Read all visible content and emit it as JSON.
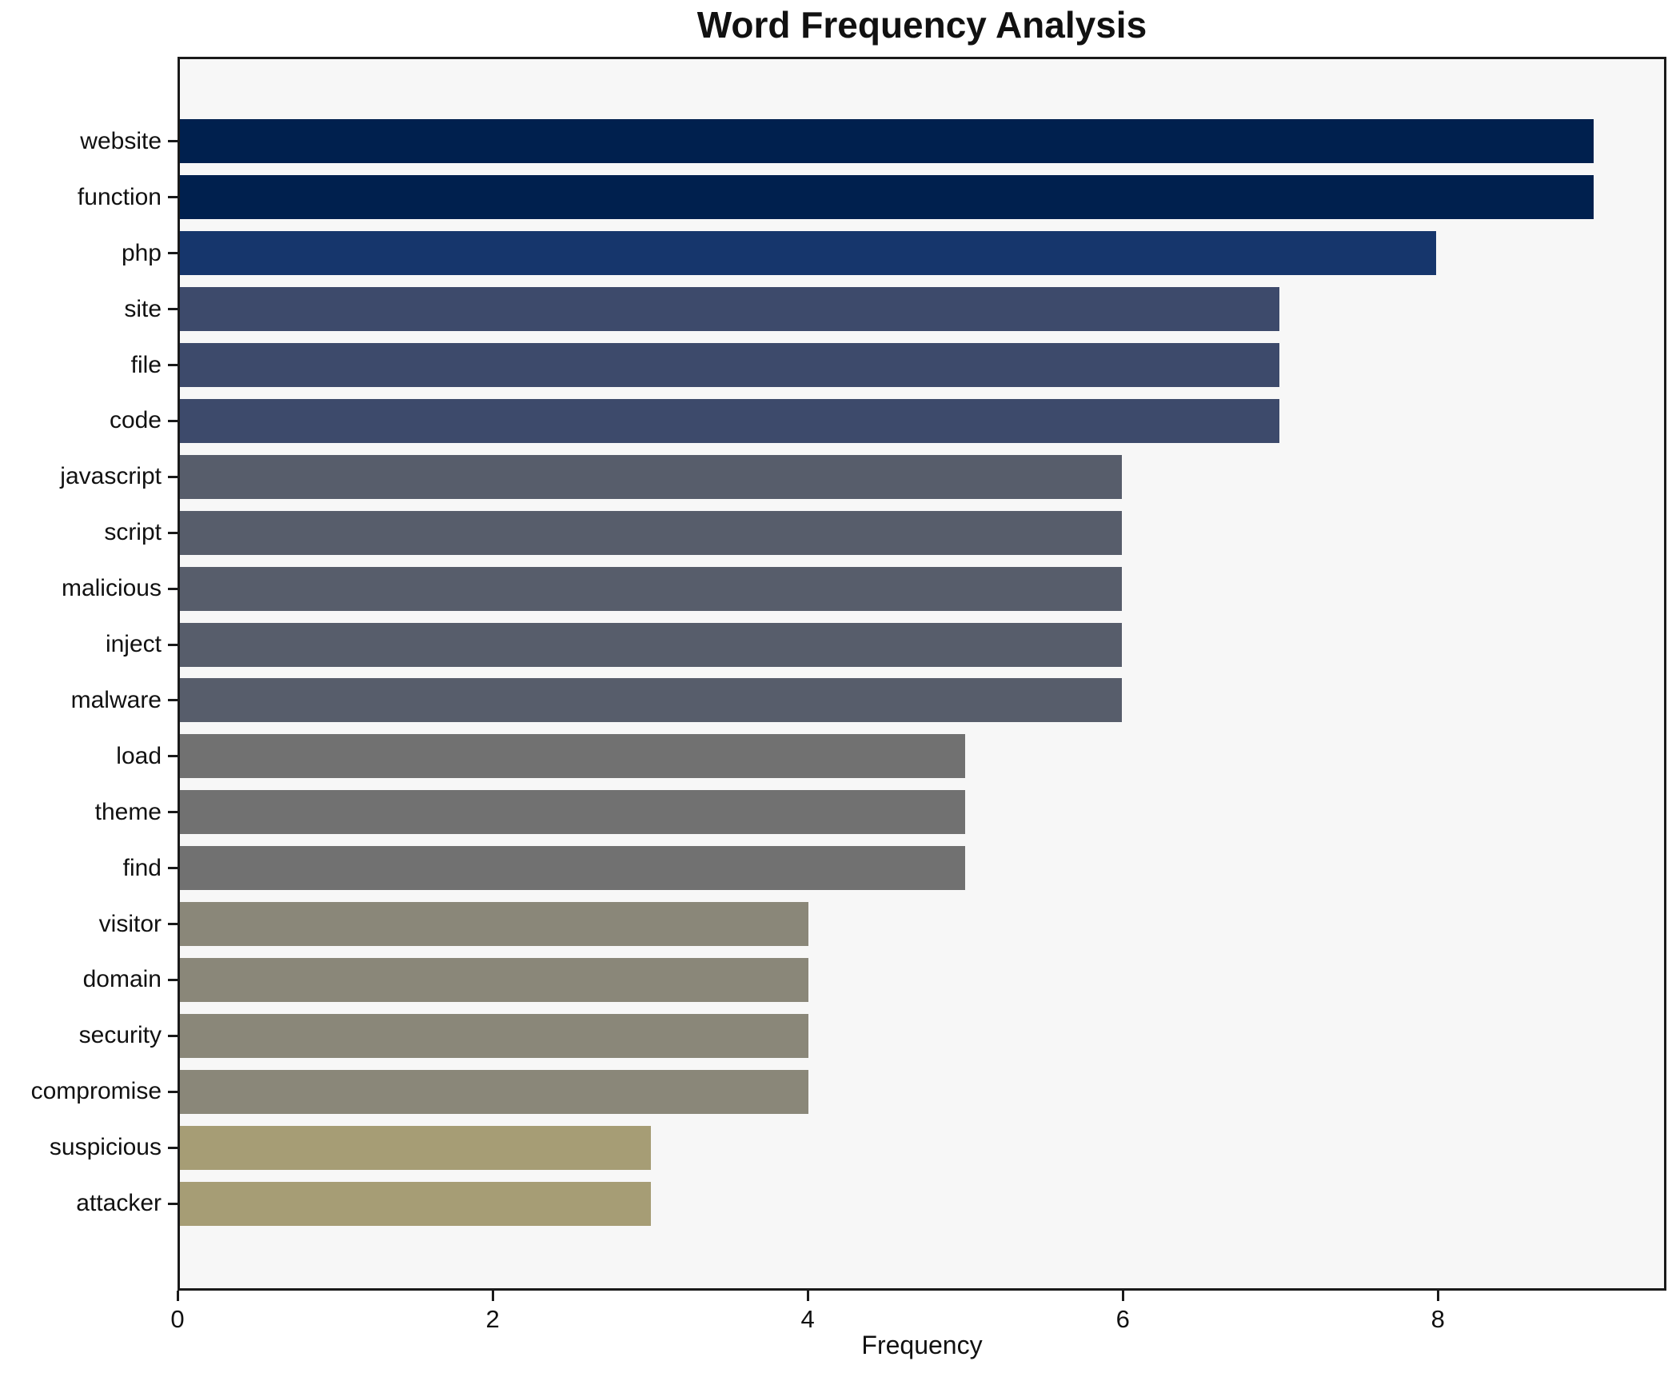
{
  "title": "Word Frequency Analysis",
  "chart_data": {
    "type": "bar",
    "orientation": "horizontal",
    "title": "Word Frequency Analysis",
    "xlabel": "Frequency",
    "ylabel": "",
    "xlim": [
      0,
      9.45
    ],
    "xticks": [
      0,
      2,
      4,
      6,
      8
    ],
    "grid": false,
    "legend": null,
    "plot_bg_color": "#f7f7f7",
    "figure_bg_color": "#ffffff",
    "spine_color": "#1a1a1a",
    "categories": [
      "website",
      "function",
      "php",
      "site",
      "file",
      "code",
      "javascript",
      "script",
      "malicious",
      "inject",
      "malware",
      "load",
      "theme",
      "find",
      "visitor",
      "domain",
      "security",
      "compromise",
      "suspicious",
      "attacker"
    ],
    "values": [
      9,
      9,
      8,
      7,
      7,
      7,
      6,
      6,
      6,
      6,
      6,
      5,
      5,
      5,
      4,
      4,
      4,
      4,
      3,
      3
    ],
    "bar_colors": [
      "#00204e",
      "#00204e",
      "#16366c",
      "#3d4a6b",
      "#3d4a6b",
      "#3d4a6b",
      "#575d6b",
      "#575d6b",
      "#575d6b",
      "#575d6b",
      "#575d6b",
      "#717171",
      "#717171",
      "#717171",
      "#8a8779",
      "#8a8779",
      "#8a8779",
      "#8a8779",
      "#a69d75",
      "#a69d75"
    ],
    "colormap": "cividis"
  }
}
